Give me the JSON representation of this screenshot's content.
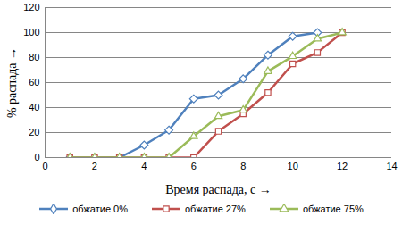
{
  "chart_data": {
    "type": "line",
    "x_label": "Время распада, с",
    "y_label": "% распада",
    "x": [
      1,
      2,
      3,
      4,
      5,
      6,
      7,
      8,
      9,
      10,
      11,
      12
    ],
    "series": [
      {
        "name": "обжатие 0%",
        "color": "#4f81bd",
        "marker": "diamond",
        "values": [
          0,
          0,
          0,
          10,
          22,
          47,
          50,
          63,
          82,
          97,
          100,
          null
        ]
      },
      {
        "name": "обжатие 27%",
        "color": "#c0504d",
        "marker": "square",
        "values": [
          0,
          0,
          0,
          0,
          0,
          0,
          21,
          35,
          52,
          75,
          84,
          100
        ]
      },
      {
        "name": "обжатие 75%",
        "color": "#9bbb59",
        "marker": "triangle",
        "values": [
          0,
          0,
          0,
          0,
          0,
          17,
          33,
          38,
          69,
          81,
          95,
          100
        ]
      }
    ],
    "xlim": [
      0,
      14
    ],
    "xticks": [
      0,
      2,
      4,
      6,
      8,
      10,
      12,
      14
    ],
    "ylim": [
      0,
      120
    ],
    "yticks": [
      0,
      20,
      40,
      60,
      80,
      100,
      120
    ],
    "grid": true,
    "legend": "bottom"
  }
}
